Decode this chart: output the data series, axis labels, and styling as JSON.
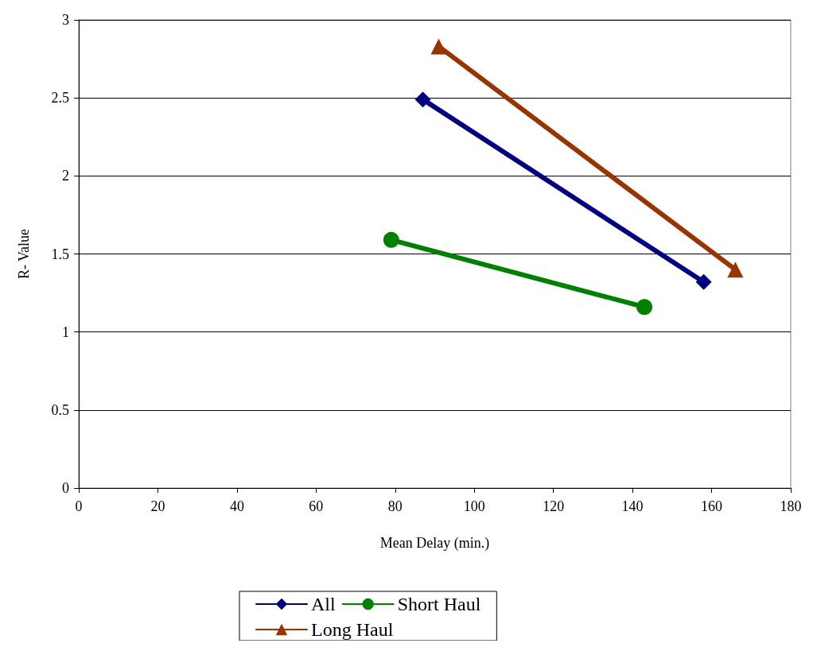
{
  "chart_data": {
    "type": "line",
    "xlabel": "Mean Delay (min.)",
    "ylabel": "R- Value",
    "xlim": [
      0,
      180
    ],
    "xticks": [
      0,
      20,
      40,
      60,
      80,
      100,
      120,
      140,
      160,
      180
    ],
    "ylim": [
      0,
      3
    ],
    "yticks": [
      0,
      0.5,
      1,
      1.5,
      2,
      2.5,
      3
    ],
    "grid": "y",
    "legend": "bottom",
    "line_style": "solid",
    "series": [
      {
        "name": "All",
        "color": "#000080",
        "marker": "diamond",
        "x": [
          87,
          158
        ],
        "values": [
          2.49,
          1.32
        ]
      },
      {
        "name": "Short Haul",
        "color": "#008000",
        "marker": "circle",
        "x": [
          79,
          143
        ],
        "values": [
          1.59,
          1.16
        ]
      },
      {
        "name": "Long Haul",
        "color": "#993300",
        "marker": "triangle",
        "x": [
          91,
          166
        ],
        "values": [
          2.83,
          1.4
        ]
      }
    ]
  }
}
